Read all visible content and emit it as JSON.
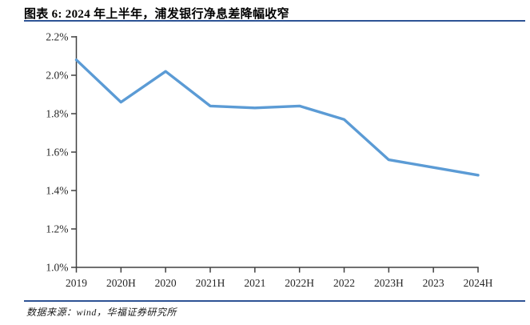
{
  "header": {
    "title": "图表 6: 2024 年上半年，浦发银行净息差降幅收窄"
  },
  "footer": {
    "source": "数据来源：wind，华福证券研究所"
  },
  "colors": {
    "line": "#5B9BD5",
    "axis": "#404040",
    "tick_label": "#262626",
    "rule": "#2E5395"
  },
  "chart_data": {
    "type": "line",
    "title": "图表 6: 2024 年上半年，浦发银行净息差降幅收窄",
    "categories": [
      "2019",
      "2020H",
      "2020",
      "2021H",
      "2021",
      "2022H",
      "2022",
      "2023H",
      "2023",
      "2024H"
    ],
    "values": [
      2.08,
      1.86,
      2.02,
      1.84,
      1.83,
      1.84,
      1.77,
      1.56,
      1.52,
      1.48
    ],
    "unit": "%",
    "xlabel": "",
    "ylabel": "",
    "ylim": [
      1.0,
      2.2
    ],
    "ytick_step": 0.2,
    "ytick_labels": [
      "1.0%",
      "1.2%",
      "1.4%",
      "1.6%",
      "1.8%",
      "2.0%",
      "2.2%"
    ],
    "grid": false,
    "legend": "none",
    "markers": false
  }
}
